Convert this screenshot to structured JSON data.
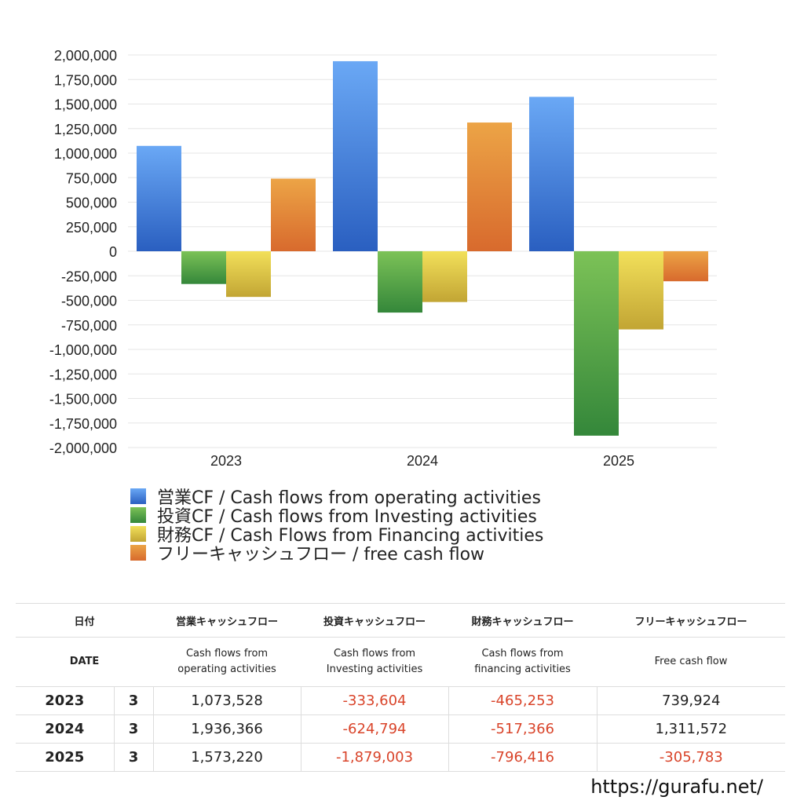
{
  "chart_data": {
    "type": "bar",
    "categories": [
      "2023",
      "2024",
      "2025"
    ],
    "series": [
      {
        "name": "営業CF / Cash flows from operating activities",
        "values": [
          1073528,
          1936366,
          1573220
        ],
        "color_top": "#6aa8f5",
        "color_bottom": "#2a5fc0"
      },
      {
        "name": "投資CF / Cash flows from Investing activities",
        "values": [
          -333604,
          -624794,
          -1879003
        ],
        "color_top": "#7cc257",
        "color_bottom": "#34873a"
      },
      {
        "name": "財務CF / Cash Flows from Financing activities",
        "values": [
          -465253,
          -517366,
          -796416
        ],
        "color_top": "#f2e05a",
        "color_bottom": "#c2a534"
      },
      {
        "name": "フリーキャッシュフロー / free cash flow",
        "values": [
          739924,
          1311572,
          -305783
        ],
        "color_top": "#eca446",
        "color_bottom": "#d86a2d"
      }
    ],
    "ylim": [
      -2000000,
      2000000
    ],
    "yticks": [
      "2,000,000",
      "1,750,000",
      "1,500,000",
      "1,250,000",
      "1,000,000",
      "750,000",
      "500,000",
      "250,000",
      "0",
      "-250,000",
      "-500,000",
      "-750,000",
      "-1,000,000",
      "-1,250,000",
      "-1,500,000",
      "-1,750,000",
      "-2,000,000"
    ],
    "ytick_values": [
      2000000,
      1750000,
      1500000,
      1250000,
      1000000,
      750000,
      500000,
      250000,
      0,
      -250000,
      -500000,
      -750000,
      -1000000,
      -1250000,
      -1500000,
      -1750000,
      -2000000
    ],
    "grid": true,
    "legend_position": "bottom"
  },
  "table": {
    "header_jp": [
      "日付",
      "営業キャッシュフロー",
      "投資キャッシュフロー",
      "財務キャッシュフロー",
      "フリーキャッシュフロー"
    ],
    "header_en_date": "DATE",
    "header_en": [
      [
        "Cash flows from",
        "operating activities"
      ],
      [
        "Cash flows from",
        "Investing activities"
      ],
      [
        "Cash flows from",
        "financing activities"
      ],
      [
        "Free cash flow",
        ""
      ]
    ],
    "rows": [
      {
        "year": "2023",
        "month": "3",
        "values": [
          "1,073,528",
          "-333,604",
          "-465,253",
          "739,924"
        ]
      },
      {
        "year": "2024",
        "month": "3",
        "values": [
          "1,936,366",
          "-624,794",
          "-517,366",
          "1,311,572"
        ]
      },
      {
        "year": "2025",
        "month": "3",
        "values": [
          "1,573,220",
          "-1,879,003",
          "-796,416",
          "-305,783"
        ]
      }
    ]
  },
  "footer": {
    "url": "https://gurafu.net/"
  }
}
